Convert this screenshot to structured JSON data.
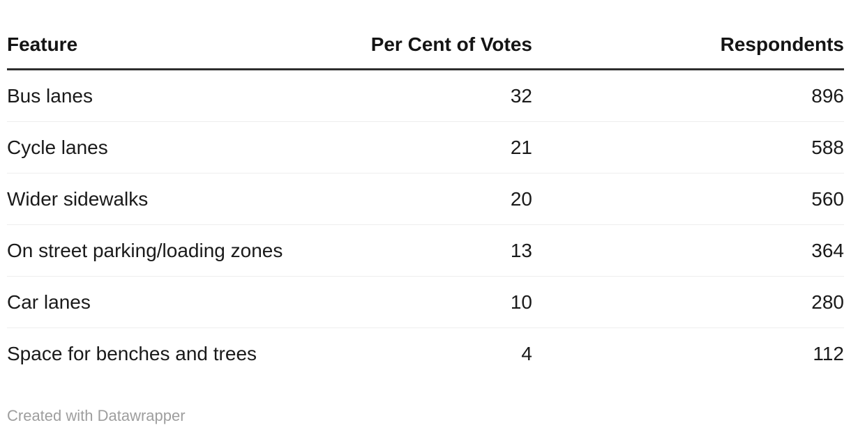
{
  "chart_data": {
    "type": "table",
    "columns": [
      "Feature",
      "Per Cent of Votes",
      "Respondents"
    ],
    "rows": [
      [
        "Bus lanes",
        32,
        896
      ],
      [
        "Cycle lanes",
        21,
        588
      ],
      [
        "Wider sidewalks",
        20,
        560
      ],
      [
        "On street parking/loading zones",
        13,
        364
      ],
      [
        "Car lanes",
        10,
        280
      ],
      [
        "Space for benches and trees",
        4,
        112
      ]
    ],
    "layout": {
      "column_alignment": [
        "left",
        "right",
        "right"
      ],
      "grid": "horizontal-rules-only",
      "header_rule": true
    }
  },
  "attribution": {
    "label": "Created with Datawrapper"
  },
  "colors": {
    "background": "#ffffff",
    "body_text": "#1a1a1a",
    "header_text": "#141414",
    "header_rule": "#2e2e2e",
    "row_separator": "#eeeeee",
    "attribution_text": "#9e9e9e"
  }
}
